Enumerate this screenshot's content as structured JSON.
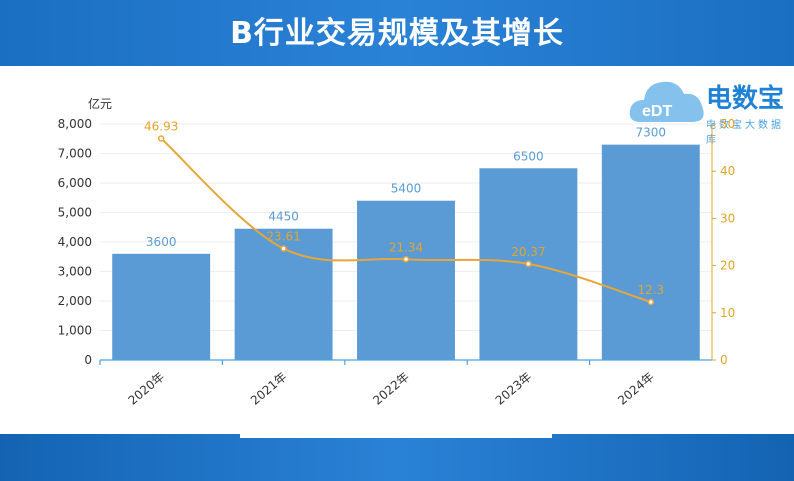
{
  "header": {
    "title": "B行业交易规模及其增长"
  },
  "logo": {
    "name": "电数宝",
    "subtitle": "电数宝大数据库",
    "badge": "eDT"
  },
  "chart_data": {
    "type": "bar",
    "categories": [
      "2020年",
      "2021年",
      "2022年",
      "2023年",
      "2024年"
    ],
    "series": [
      {
        "name": "",
        "type": "bar",
        "axis": "left",
        "values": [
          3600,
          4450,
          5400,
          6500,
          7300
        ]
      },
      {
        "name": "",
        "type": "line",
        "axis": "right",
        "values": [
          46.93,
          23.61,
          21.34,
          20.37,
          12.3
        ]
      }
    ],
    "ylabel": "亿元",
    "ylim": [
      0,
      8000
    ],
    "yticks": [
      "0",
      "1,000",
      "2,000",
      "3,000",
      "4,000",
      "5,000",
      "6,000",
      "7,000",
      "8,000"
    ],
    "y2lim": [
      0,
      50
    ],
    "y2ticks": [
      "0",
      "10",
      "20",
      "30",
      "40",
      "50"
    ],
    "bar_color": "#5b9bd5",
    "line_color": "#e8a63a",
    "grid": true
  }
}
